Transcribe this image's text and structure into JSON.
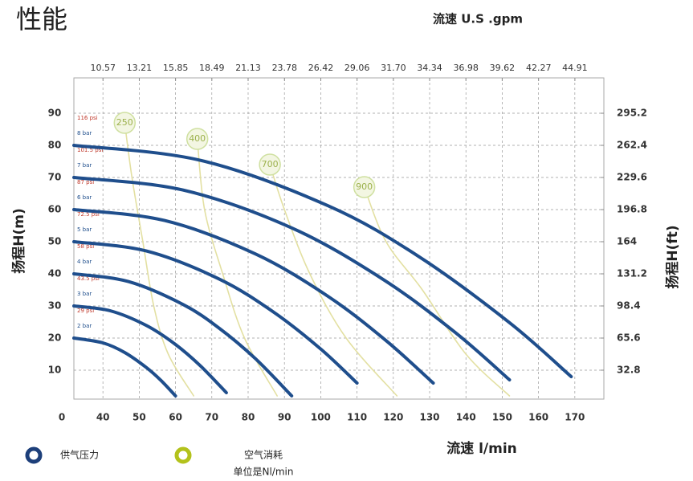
{
  "chart_data": {
    "type": "line",
    "title": "性能",
    "x2_label": "流速 U.S .gpm",
    "ylabel": "扬程H(m)",
    "y2label": "扬程H(ft)",
    "xlabel": "流速 l/min",
    "origin_label": "0",
    "xlim": [
      32,
      178
    ],
    "xticks": [
      40,
      50,
      60,
      70,
      80,
      90,
      100,
      110,
      120,
      130,
      140,
      150,
      160,
      170
    ],
    "x2lim": [
      8.45,
      47.02
    ],
    "x2ticks": [
      10.57,
      13.21,
      15.85,
      18.49,
      21.13,
      23.78,
      26.42,
      29.06,
      31.7,
      34.34,
      36.98,
      39.62,
      42.27,
      44.91
    ],
    "x2tick_labels": [
      "10.57",
      "13.21",
      "15.85",
      "18.49",
      "21.13",
      "23.78",
      "26.42",
      "29.06",
      "31.70",
      "34.34",
      "36.98",
      "39.62",
      "42.27",
      "44.91"
    ],
    "ylim": [
      1,
      101
    ],
    "yticks": [
      10,
      20,
      30,
      40,
      50,
      60,
      70,
      80,
      90
    ],
    "y2lim": [
      3.28,
      331.3
    ],
    "y2ticks": [
      32.8,
      65.6,
      98.4,
      131.2,
      164,
      196.8,
      229.6,
      262.4,
      295.2
    ],
    "grid": true,
    "series": [
      {
        "name": "2 bar",
        "psi_label": "29 psi",
        "color": "#1f4e8c",
        "x": [
          32,
          40,
          46,
          52,
          56,
          60
        ],
        "values": [
          20,
          18.5,
          15.5,
          10.8,
          6.8,
          2
        ]
      },
      {
        "name": "3 bar",
        "psi_label": "43.5 psi",
        "color": "#1f4e8c",
        "x": [
          32,
          42,
          52,
          60,
          67,
          74
        ],
        "values": [
          30,
          28.5,
          23.9,
          18.0,
          11.2,
          3
        ]
      },
      {
        "name": "4 bar",
        "psi_label": "58 psi",
        "color": "#1f4e8c",
        "x": [
          32,
          47,
          62,
          72,
          82,
          92
        ],
        "values": [
          40,
          37.6,
          30.5,
          23.1,
          13.6,
          2
        ]
      },
      {
        "name": "5 bar",
        "psi_label": "72.5 psi",
        "color": "#1f4e8c",
        "x": [
          32,
          52,
          72,
          87,
          100,
          110
        ],
        "values": [
          50,
          47.1,
          38.4,
          28.1,
          16.6,
          6
        ]
      },
      {
        "name": "6 bar",
        "psi_label": "87 psi",
        "color": "#1f4e8c",
        "x": [
          32,
          57,
          82,
          102,
          118,
          131
        ],
        "values": [
          60,
          56.6,
          46.2,
          33.0,
          19.2,
          6
        ]
      },
      {
        "name": "7 bar",
        "psi_label": "101.5 psi",
        "color": "#1f4e8c",
        "x": [
          32,
          62,
          92,
          117,
          137,
          152
        ],
        "values": [
          70,
          66.1,
          54.3,
          38.4,
          21.8,
          7
        ]
      },
      {
        "name": "8 bar",
        "psi_label": "116 psi",
        "color": "#1f4e8c",
        "x": [
          32,
          67,
          102,
          127,
          152,
          169
        ],
        "values": [
          80,
          75.3,
          61.2,
          45.4,
          24.8,
          8
        ]
      }
    ],
    "air_series": [
      {
        "name": "250",
        "color": "#e3e0a2",
        "x": [
          46,
          48,
          51,
          54,
          58,
          65
        ],
        "values": [
          87,
          70,
          50,
          30,
          15,
          2
        ]
      },
      {
        "name": "400",
        "color": "#e3e0a2",
        "x": [
          66,
          68,
          73,
          79,
          88
        ],
        "values": [
          82,
          60,
          40,
          20,
          2
        ]
      },
      {
        "name": "700",
        "color": "#e3e0a2",
        "x": [
          86,
          90,
          97,
          107,
          121
        ],
        "values": [
          74,
          60,
          40,
          20,
          2
        ]
      },
      {
        "name": "900",
        "color": "#e3e0a2",
        "x": [
          112,
          118,
          128,
          140,
          152
        ],
        "values": [
          67,
          50,
          35,
          15,
          2
        ]
      }
    ],
    "legend": [
      {
        "label": "供气压力",
        "color": "#1d3f7a"
      },
      {
        "label": "空气消耗",
        "sublabel": "单位是Nl/min",
        "color": "#b3c21c"
      }
    ]
  }
}
